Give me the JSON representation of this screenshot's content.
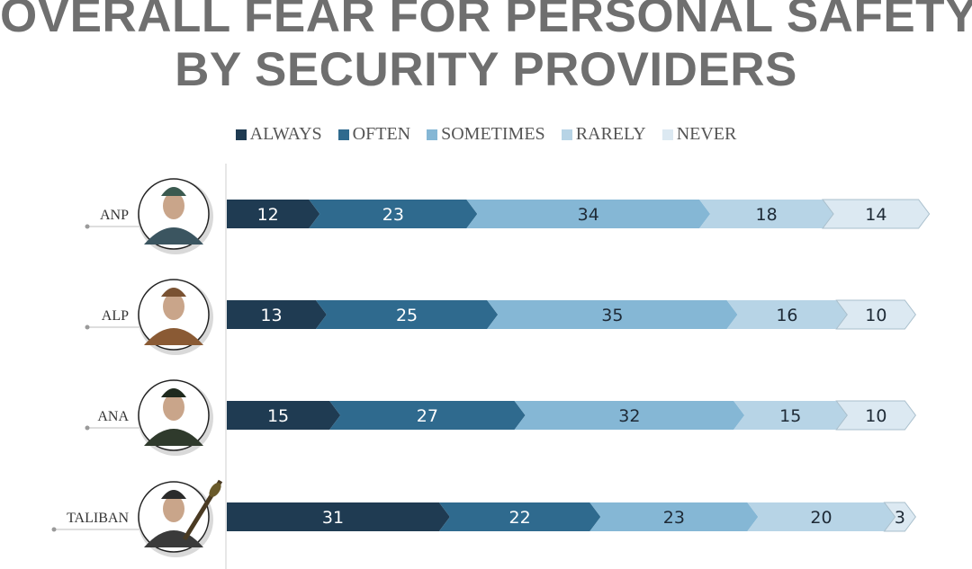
{
  "title_line1": "OVERALL FEAR FOR PERSONAL SAFETY,",
  "title_line2": "BY SECURITY PROVIDERS",
  "colors": [
    "#1f3b52",
    "#2f6a8e",
    "#85b7d5",
    "#b7d4e6",
    "#dce9f2"
  ],
  "chart_data": {
    "type": "bar",
    "orientation": "horizontal",
    "stacked": true,
    "title": "OVERALL FEAR FOR PERSONAL SAFETY, BY SECURITY PROVIDERS",
    "legend_position": "top",
    "categories": [
      "ANP",
      "ALP",
      "ANA",
      "TALIBAN"
    ],
    "series": [
      {
        "name": "ALWAYS",
        "values": [
          12,
          13,
          15,
          31
        ]
      },
      {
        "name": "OFTEN",
        "values": [
          23,
          25,
          27,
          22
        ]
      },
      {
        "name": "SOMETIMES",
        "values": [
          34,
          35,
          32,
          23
        ]
      },
      {
        "name": "RARELY",
        "values": [
          18,
          16,
          15,
          20
        ]
      },
      {
        "name": "NEVER",
        "values": [
          14,
          10,
          10,
          3
        ]
      }
    ],
    "xlim": [
      0,
      100
    ]
  }
}
